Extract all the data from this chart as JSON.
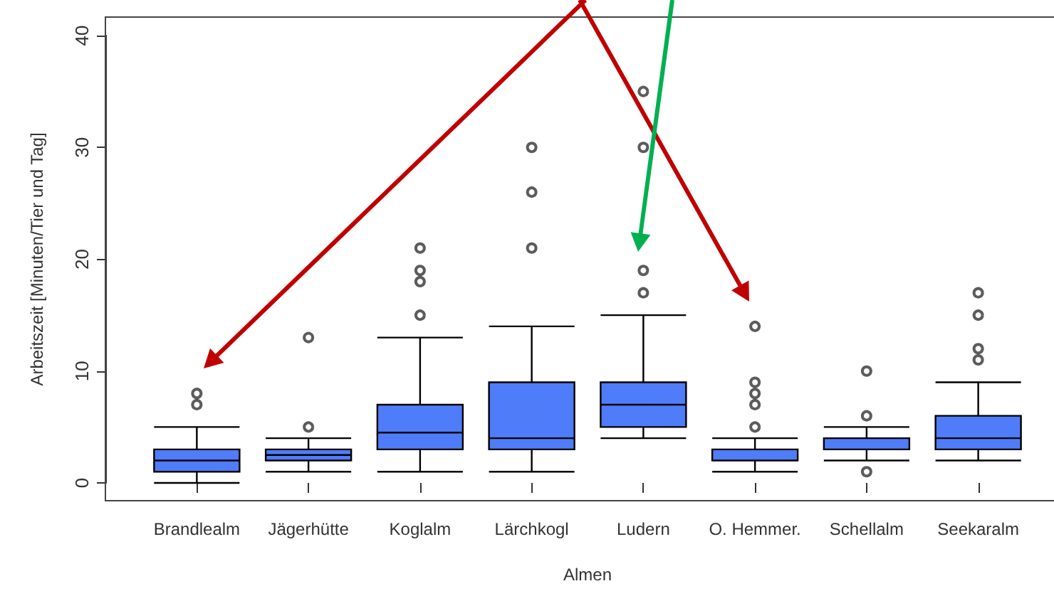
{
  "chart_data": {
    "type": "box",
    "xlabel": "Almen",
    "ylabel": "Arbeitszeit [Minuten/Tier und Tag]",
    "categories": [
      "Brandlealm",
      "Jägerhütte",
      "Koglalm",
      "Lärchkogl",
      "Ludern",
      "O. Hemmer.",
      "Schellalm",
      "Seekaralm"
    ],
    "color": "#4f7cf8",
    "boxes": [
      {
        "low": 0,
        "q1": 1,
        "median": 2,
        "q3": 3,
        "high": 5,
        "outliers": [
          7,
          8
        ]
      },
      {
        "low": 1,
        "q1": 2,
        "median": 2.5,
        "q3": 3,
        "high": 4,
        "outliers": [
          5,
          13
        ]
      },
      {
        "low": 1,
        "q1": 3,
        "median": 4.5,
        "q3": 7,
        "high": 13,
        "outliers": [
          15,
          18,
          19,
          21
        ]
      },
      {
        "low": 1,
        "q1": 3,
        "median": 4,
        "q3": 9,
        "high": 14,
        "outliers": [
          21,
          26,
          30
        ]
      },
      {
        "low": 4,
        "q1": 5,
        "median": 7,
        "q3": 9,
        "high": 15,
        "outliers": [
          17,
          19,
          30,
          35
        ]
      },
      {
        "low": 1,
        "q1": 2,
        "median": 2,
        "q3": 3,
        "high": 4,
        "outliers": [
          5,
          7,
          8,
          9,
          14
        ]
      },
      {
        "low": 2,
        "q1": 3,
        "median": 4,
        "q3": 4,
        "high": 5,
        "outliers": [
          1,
          6,
          10
        ]
      },
      {
        "low": 2,
        "q1": 3,
        "median": 4,
        "q3": 6,
        "high": 9,
        "outliers": [
          11,
          12,
          15,
          17
        ]
      }
    ],
    "ylim": [
      0,
      40
    ],
    "yticks": [
      0,
      10,
      20,
      30,
      40
    ]
  }
}
